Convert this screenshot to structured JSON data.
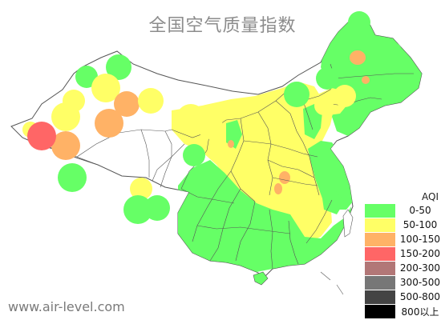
{
  "title": "全国空气质量指数",
  "site": "www.air-level.com",
  "legend": {
    "title": "AQI",
    "items": [
      {
        "label": "0-50",
        "color": "#66ff66"
      },
      {
        "label": "50-100",
        "color": "#ffff66"
      },
      {
        "label": "100-150",
        "color": "#ffb266"
      },
      {
        "label": "150-200",
        "color": "#ff6666"
      },
      {
        "label": "200-300",
        "color": "#b27777"
      },
      {
        "label": "300-500",
        "color": "#777777"
      },
      {
        "label": "500-800",
        "color": "#444444"
      },
      {
        "label": "800以上",
        "color": "#000000"
      }
    ]
  }
}
